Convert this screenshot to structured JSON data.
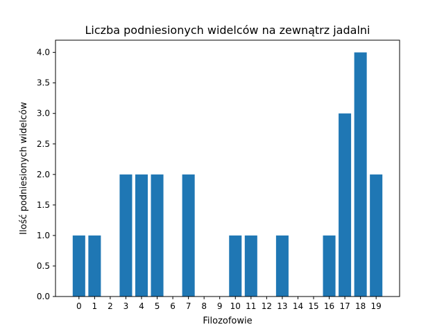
{
  "chart_data": {
    "type": "bar",
    "title": "Liczba podniesionych widelców na zewnątrz jadalni",
    "xlabel": "Filozofowie",
    "ylabel": "Ilość podniesionych widelców",
    "categories": [
      "0",
      "1",
      "2",
      "3",
      "4",
      "5",
      "6",
      "7",
      "8",
      "9",
      "10",
      "11",
      "12",
      "13",
      "14",
      "15",
      "16",
      "17",
      "18",
      "19"
    ],
    "values": [
      1,
      1,
      0,
      2,
      2,
      2,
      0,
      2,
      0,
      0,
      1,
      1,
      0,
      1,
      0,
      0,
      1,
      3,
      4,
      2
    ],
    "ylim": [
      0,
      4.2
    ],
    "yticks": [
      "0.0",
      "0.5",
      "1.0",
      "1.5",
      "2.0",
      "2.5",
      "3.0",
      "3.5",
      "4.0"
    ],
    "bar_color": "#1f77b4",
    "grid": false,
    "legend": "none"
  }
}
